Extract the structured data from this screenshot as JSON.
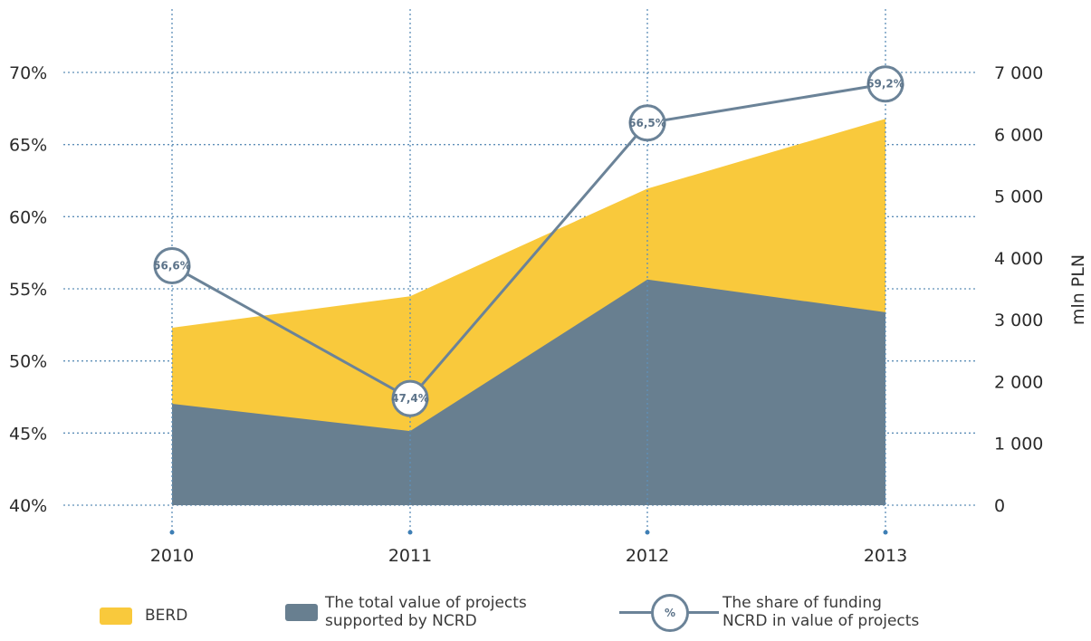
{
  "chart_data": {
    "type": "area",
    "categories": [
      "2010",
      "2011",
      "2012",
      "2013"
    ],
    "ylabel_right": "mln PLN",
    "y_left_ticks": [
      "40%",
      "45%",
      "50%",
      "55%",
      "60%",
      "65%",
      "70%"
    ],
    "y_left_range": [
      40,
      70
    ],
    "y_right_ticks": [
      "0",
      "1 000",
      "2 000",
      "3 000",
      "4 000",
      "5 000",
      "6 000",
      "7 000"
    ],
    "y_right_range": [
      0,
      7000
    ],
    "grid": true,
    "series": [
      {
        "name": "BERD",
        "type": "area",
        "axis": "right",
        "color": "#f9c93c",
        "values": [
          2870,
          3380,
          5120,
          6250
        ]
      },
      {
        "name": "The total value of projects supported by NCRD",
        "type": "area",
        "axis": "right",
        "color": "#687f90",
        "values": [
          1640,
          1200,
          3650,
          3120
        ]
      },
      {
        "name": "The share of funding NCRD in value of projects",
        "type": "line",
        "axis": "left",
        "color": "#6b8398",
        "values": [
          56.6,
          47.4,
          66.5,
          69.2
        ],
        "labels": [
          "56,6%",
          "47,4%",
          "66,5%",
          "69,2%"
        ]
      }
    ]
  },
  "legend": {
    "berd": "BERD",
    "ncrd_total": "The total value of projects\nsupported by NCRD",
    "share_symbol": "%",
    "share": "The share of funding\nNCRD in value of projects"
  }
}
